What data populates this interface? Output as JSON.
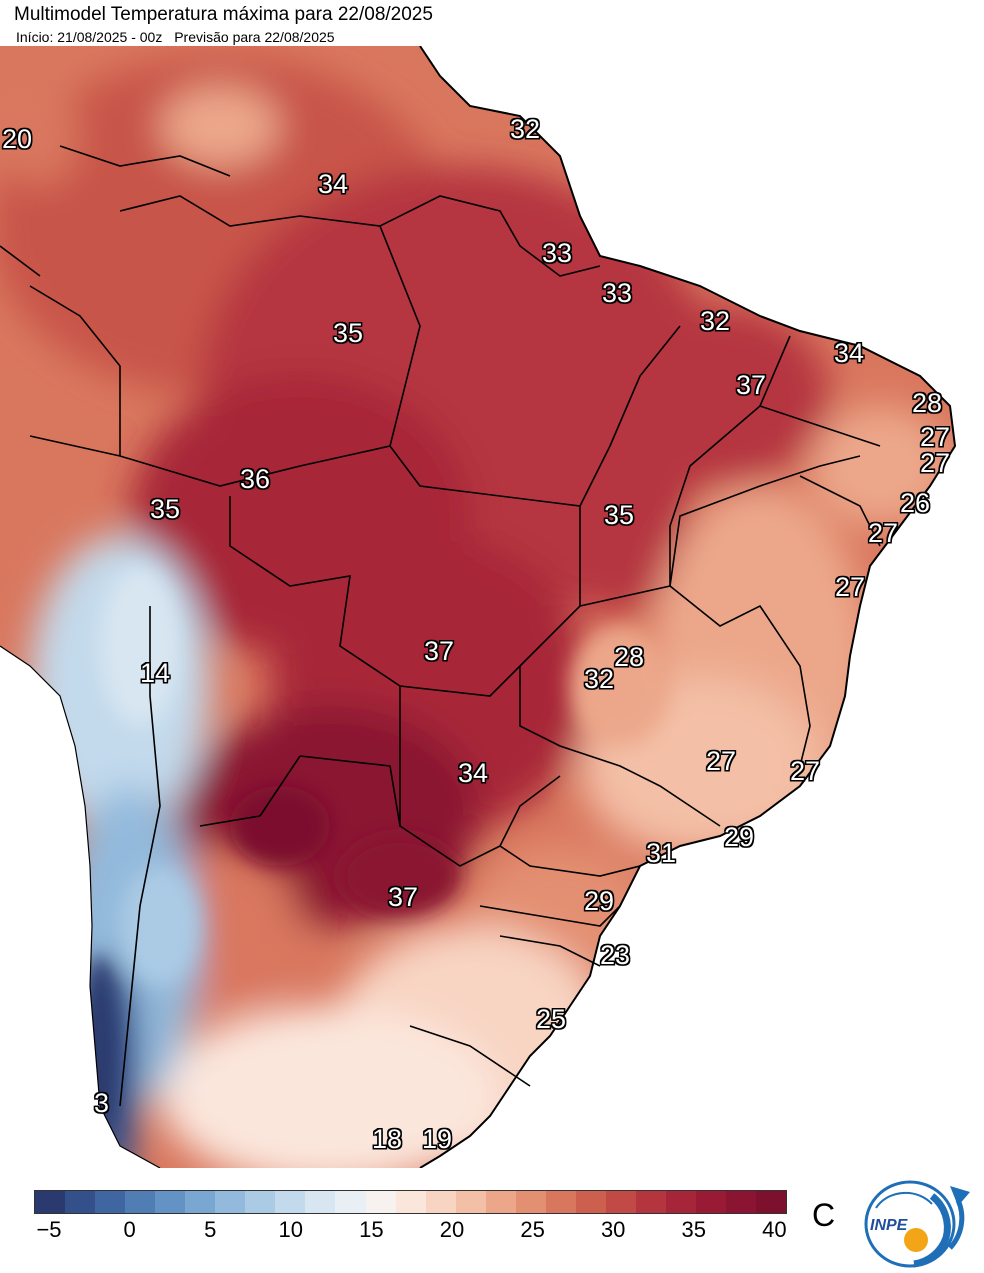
{
  "header": {
    "title": "Multimodel Temperatura máxima para 22/08/2025",
    "init": "Início: 21/08/2025 - 00z",
    "forecast": "Previsão para 22/08/2025"
  },
  "map": {
    "labels": [
      {
        "id": "l20",
        "text": "20"
      },
      {
        "id": "l32a",
        "text": "32"
      },
      {
        "id": "l34a",
        "text": "34"
      },
      {
        "id": "l33a",
        "text": "33"
      },
      {
        "id": "l33b",
        "text": "33"
      },
      {
        "id": "l35a",
        "text": "35"
      },
      {
        "id": "l32b",
        "text": "32"
      },
      {
        "id": "l34b",
        "text": "34"
      },
      {
        "id": "l37a",
        "text": "37"
      },
      {
        "id": "l28a",
        "text": "28"
      },
      {
        "id": "l27a",
        "text": "27"
      },
      {
        "id": "l27b",
        "text": "27"
      },
      {
        "id": "l36",
        "text": "36"
      },
      {
        "id": "l35b",
        "text": "35"
      },
      {
        "id": "l26",
        "text": "26"
      },
      {
        "id": "l35c",
        "text": "35"
      },
      {
        "id": "l27c",
        "text": "27"
      },
      {
        "id": "l27d",
        "text": "27"
      },
      {
        "id": "l14",
        "text": "14"
      },
      {
        "id": "l37b",
        "text": "37"
      },
      {
        "id": "l28b",
        "text": "28"
      },
      {
        "id": "l32c",
        "text": "32"
      },
      {
        "id": "l27e",
        "text": "27"
      },
      {
        "id": "l27f",
        "text": "27"
      },
      {
        "id": "l34c",
        "text": "34"
      },
      {
        "id": "l29a",
        "text": "29"
      },
      {
        "id": "l31",
        "text": "31"
      },
      {
        "id": "l37c",
        "text": "37"
      },
      {
        "id": "l29b",
        "text": "29"
      },
      {
        "id": "l23",
        "text": "23"
      },
      {
        "id": "l25",
        "text": "25"
      },
      {
        "id": "l3",
        "text": "3"
      },
      {
        "id": "l18",
        "text": "18"
      },
      {
        "id": "l19",
        "text": "19"
      }
    ]
  },
  "colorbar": {
    "ticks": [
      "−5",
      "0",
      "5",
      "10",
      "15",
      "20",
      "25",
      "30",
      "35",
      "40"
    ],
    "unit": "C",
    "colors": [
      "#2a3a6e",
      "#33508a",
      "#3f66a0",
      "#4f7db4",
      "#6393c4",
      "#7aa7d1",
      "#93badc",
      "#abcbe5",
      "#c3daec",
      "#d8e6f1",
      "#e9f0f5",
      "#f7f2ef",
      "#fbe6dc",
      "#f8d4c2",
      "#f3bfa6",
      "#eca78a",
      "#e38f72",
      "#d9775e",
      "#cd5f4f",
      "#c24a46",
      "#b5353f",
      "#a72539",
      "#981a35",
      "#8a1431",
      "#7c102d"
    ]
  },
  "logo": {
    "text": "INPE"
  }
}
